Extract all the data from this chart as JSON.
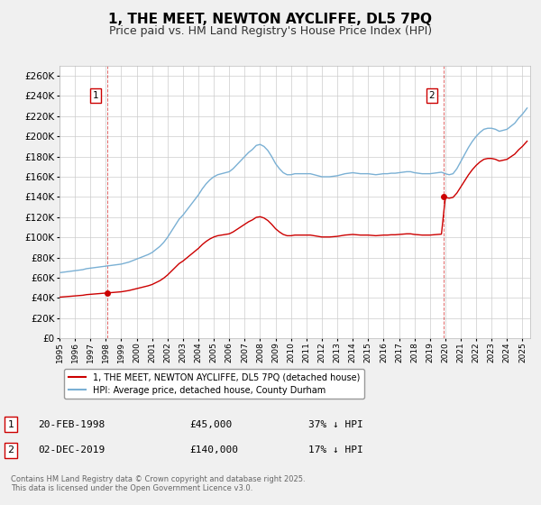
{
  "title": "1, THE MEET, NEWTON AYCLIFFE, DL5 7PQ",
  "subtitle": "Price paid vs. HM Land Registry's House Price Index (HPI)",
  "title_fontsize": 11,
  "subtitle_fontsize": 9,
  "background_color": "#f0f0f0",
  "plot_bg_color": "#ffffff",
  "grid_color": "#cccccc",
  "ylim": [
    0,
    270000
  ],
  "ytick_step": 20000,
  "hpi_color": "#7ab0d4",
  "price_color": "#cc0000",
  "sale1_date": 1998.12,
  "sale1_price": 45000,
  "sale2_date": 2019.92,
  "sale2_price": 140000,
  "legend_label1": "1, THE MEET, NEWTON AYCLIFFE, DL5 7PQ (detached house)",
  "legend_label2": "HPI: Average price, detached house, County Durham",
  "annotation1_date": "20-FEB-1998",
  "annotation1_price": "£45,000",
  "annotation1_hpi": "37% ↓ HPI",
  "annotation2_date": "02-DEC-2019",
  "annotation2_price": "£140,000",
  "annotation2_hpi": "17% ↓ HPI",
  "copyright_text": "Contains HM Land Registry data © Crown copyright and database right 2025.\nThis data is licensed under the Open Government Licence v3.0.",
  "xmin": 1995.0,
  "xmax": 2025.5
}
